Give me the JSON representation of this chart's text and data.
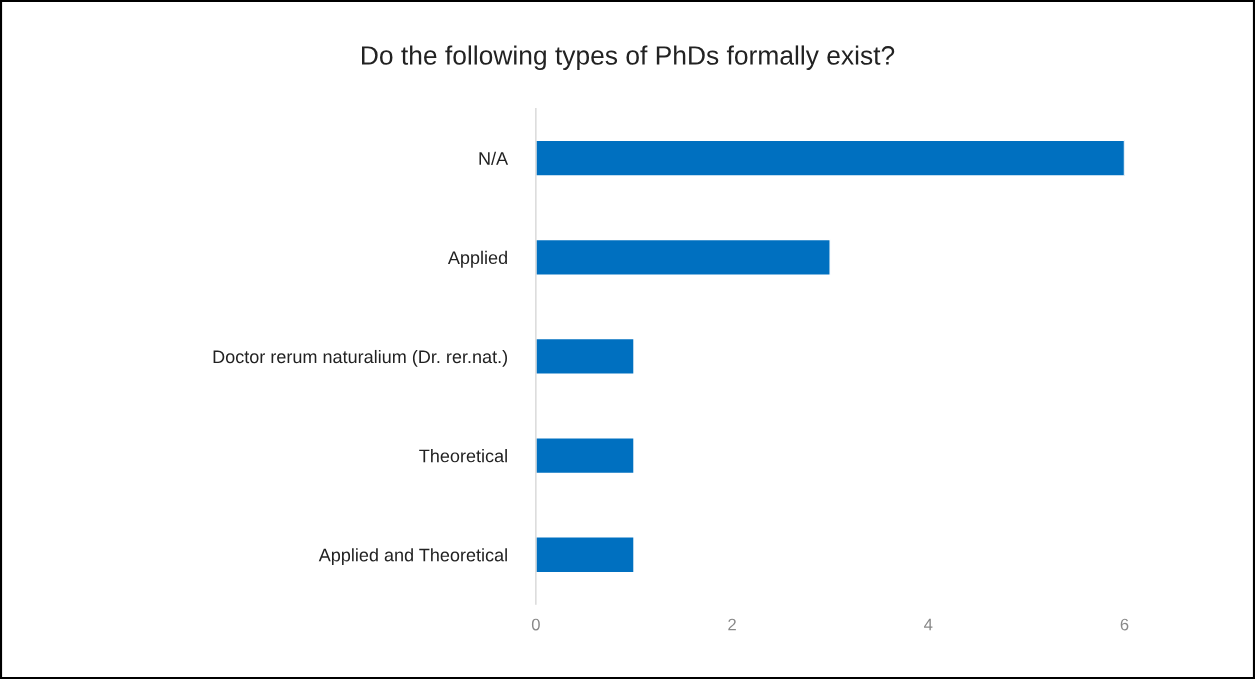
{
  "chart_data": {
    "type": "bar",
    "orientation": "horizontal",
    "title": "Do the following types of PhDs formally exist?",
    "categories": [
      "N/A",
      "Applied",
      "Doctor rerum naturalium (Dr. rer.nat.)",
      "Theoretical",
      "Applied and Theoretical"
    ],
    "values": [
      6,
      3,
      1,
      1,
      1
    ],
    "color": "#0070c0",
    "xlim": [
      0,
      6
    ],
    "xticks": [
      0,
      2,
      4,
      6
    ],
    "grid": false,
    "legend": false
  }
}
